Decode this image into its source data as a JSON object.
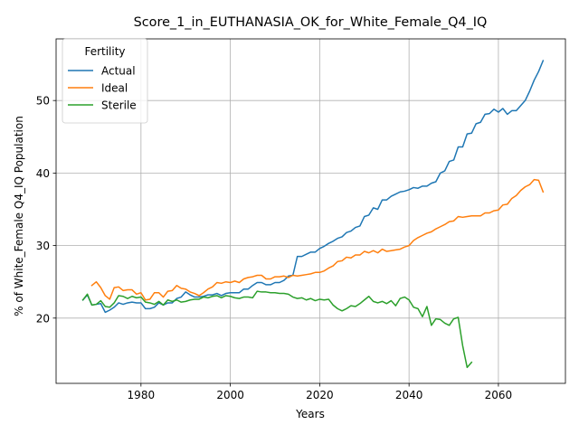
{
  "chart_data": {
    "type": "line",
    "title": "Score_1_in_EUTHANASIA_OK_for_White_Female_Q4_IQ",
    "xlabel": "Years",
    "ylabel": "% of White_Female Q4_IQ Population",
    "xlim": [
      1961,
      2075
    ],
    "ylim": [
      11,
      58.5
    ],
    "xticks": [
      1980,
      2000,
      2020,
      2040,
      2060
    ],
    "yticks": [
      20,
      30,
      40,
      50
    ],
    "grid": true,
    "legend": {
      "title": "Fertility",
      "position": "upper left"
    },
    "series": [
      {
        "name": "Actual",
        "color": "#1f77b4",
        "x": [
          1967,
          1968,
          1969,
          1970,
          1971,
          1972,
          1973,
          1974,
          1975,
          1976,
          1977,
          1978,
          1979,
          1980,
          1981,
          1982,
          1983,
          1984,
          1985,
          1986,
          1987,
          1988,
          1989,
          1990,
          1991,
          1992,
          1993,
          1994,
          1995,
          1996,
          1997,
          1998,
          1999,
          2000,
          2001,
          2002,
          2003,
          2004,
          2005,
          2006,
          2007,
          2008,
          2009,
          2010,
          2011,
          2012,
          2013,
          2014,
          2015,
          2016,
          2017,
          2018,
          2019,
          2020,
          2021,
          2022,
          2023,
          2024,
          2025,
          2026,
          2027,
          2028,
          2029,
          2030,
          2031,
          2032,
          2033,
          2034,
          2035,
          2036,
          2037,
          2038,
          2039,
          2040,
          2041,
          2042,
          2043,
          2044,
          2045,
          2046,
          2047,
          2048,
          2049,
          2050,
          2051,
          2052,
          2053,
          2054,
          2055,
          2056,
          2057,
          2058,
          2059,
          2060,
          2061,
          2062,
          2063,
          2064,
          2065,
          2066,
          2067,
          2068,
          2069,
          2070
        ],
        "values": [
          22.5,
          23.2,
          21.8,
          21.9,
          22.0,
          20.8,
          21.1,
          21.5,
          22.1,
          21.9,
          22.1,
          22.2,
          22.1,
          22.1,
          21.3,
          21.3,
          21.5,
          22.1,
          21.8,
          22.1,
          22.1,
          22.7,
          22.9,
          23.6,
          23.2,
          22.9,
          22.9,
          23.0,
          23.2,
          23.2,
          23.4,
          23.1,
          23.4,
          23.5,
          23.5,
          23.5,
          24.0,
          24.0,
          24.5,
          24.9,
          24.9,
          24.6,
          24.6,
          24.9,
          24.9,
          25.2,
          25.8,
          25.9,
          28.5,
          28.5,
          28.8,
          29.1,
          29.1,
          29.6,
          29.9,
          30.3,
          30.6,
          31.0,
          31.2,
          31.8,
          32.0,
          32.5,
          32.7,
          34.0,
          34.2,
          35.2,
          35.0,
          36.3,
          36.3,
          36.8,
          37.1,
          37.4,
          37.5,
          37.7,
          38.0,
          37.9,
          38.2,
          38.2,
          38.6,
          38.8,
          40.0,
          40.3,
          41.6,
          41.8,
          43.6,
          43.6,
          45.4,
          45.5,
          46.8,
          47.0,
          48.1,
          48.2,
          48.8,
          48.4,
          48.9,
          48.1,
          48.6,
          48.6,
          49.3,
          50.0,
          51.3,
          52.8,
          54.0,
          55.5
        ]
      },
      {
        "name": "Ideal",
        "color": "#ff7f0e",
        "x": [
          1969,
          1970,
          1971,
          1972,
          1973,
          1974,
          1975,
          1976,
          1977,
          1978,
          1979,
          1980,
          1981,
          1982,
          1983,
          1984,
          1985,
          1986,
          1987,
          1988,
          1989,
          1990,
          1991,
          1992,
          1993,
          1994,
          1995,
          1996,
          1997,
          1998,
          1999,
          2000,
          2001,
          2002,
          2003,
          2004,
          2005,
          2006,
          2007,
          2008,
          2009,
          2010,
          2011,
          2012,
          2013,
          2014,
          2015,
          2016,
          2017,
          2018,
          2019,
          2020,
          2021,
          2022,
          2023,
          2024,
          2025,
          2026,
          2027,
          2028,
          2029,
          2030,
          2031,
          2032,
          2033,
          2034,
          2035,
          2036,
          2037,
          2038,
          2039,
          2040,
          2041,
          2042,
          2043,
          2044,
          2045,
          2046,
          2047,
          2048,
          2049,
          2050,
          2051,
          2052,
          2053,
          2054,
          2055,
          2056,
          2057,
          2058,
          2059,
          2060,
          2061,
          2062,
          2063,
          2064,
          2065,
          2066,
          2067,
          2068,
          2069,
          2070
        ],
        "values": [
          24.5,
          25.0,
          24.2,
          23.1,
          22.6,
          24.2,
          24.3,
          23.8,
          23.9,
          23.9,
          23.3,
          23.5,
          22.5,
          22.6,
          23.5,
          23.5,
          22.9,
          23.7,
          23.8,
          24.5,
          24.1,
          24.0,
          23.6,
          23.4,
          23.1,
          23.5,
          24.0,
          24.3,
          24.9,
          24.8,
          25.0,
          24.9,
          25.1,
          24.9,
          25.4,
          25.6,
          25.7,
          25.9,
          25.9,
          25.4,
          25.4,
          25.7,
          25.7,
          25.8,
          25.6,
          25.9,
          25.8,
          25.9,
          26.0,
          26.1,
          26.3,
          26.3,
          26.5,
          26.9,
          27.2,
          27.8,
          27.9,
          28.4,
          28.3,
          28.7,
          28.7,
          29.2,
          29.0,
          29.3,
          29.0,
          29.5,
          29.2,
          29.3,
          29.4,
          29.5,
          29.8,
          30.0,
          30.7,
          31.1,
          31.4,
          31.7,
          31.9,
          32.3,
          32.6,
          32.9,
          33.3,
          33.4,
          34.0,
          33.9,
          34.0,
          34.1,
          34.1,
          34.1,
          34.5,
          34.5,
          34.8,
          34.9,
          35.6,
          35.7,
          36.5,
          36.9,
          37.6,
          38.1,
          38.4,
          39.1,
          39.0,
          37.4
        ]
      },
      {
        "name": "Sterile",
        "color": "#2ca02c",
        "x": [
          1967,
          1968,
          1969,
          1970,
          1971,
          1972,
          1973,
          1974,
          1975,
          1976,
          1977,
          1978,
          1979,
          1980,
          1981,
          1982,
          1983,
          1984,
          1985,
          1986,
          1987,
          1988,
          1989,
          1990,
          1991,
          1992,
          1993,
          1994,
          1995,
          1996,
          1997,
          1998,
          1999,
          2000,
          2001,
          2002,
          2003,
          2004,
          2005,
          2006,
          2007,
          2008,
          2009,
          2010,
          2011,
          2012,
          2013,
          2014,
          2015,
          2016,
          2017,
          2018,
          2019,
          2020,
          2021,
          2022,
          2023,
          2024,
          2025,
          2026,
          2027,
          2028,
          2029,
          2030,
          2031,
          2032,
          2033,
          2034,
          2035,
          2036,
          2037,
          2038,
          2039,
          2040,
          2041,
          2042,
          2043,
          2044,
          2045,
          2046,
          2047,
          2048,
          2049,
          2050,
          2051,
          2052,
          2053,
          2054
        ],
        "values": [
          22.5,
          23.3,
          21.8,
          21.9,
          22.4,
          21.6,
          21.5,
          22.1,
          23.1,
          23.0,
          22.7,
          23.0,
          22.8,
          22.9,
          22.2,
          22.1,
          21.9,
          22.3,
          21.8,
          22.5,
          22.3,
          22.5,
          22.2,
          22.3,
          22.5,
          22.6,
          22.6,
          22.9,
          22.8,
          23.0,
          23.1,
          22.8,
          23.1,
          23.0,
          22.8,
          22.7,
          22.9,
          22.9,
          22.8,
          23.7,
          23.6,
          23.6,
          23.5,
          23.5,
          23.4,
          23.4,
          23.3,
          22.9,
          22.7,
          22.8,
          22.5,
          22.7,
          22.4,
          22.6,
          22.5,
          22.6,
          21.8,
          21.3,
          21.0,
          21.3,
          21.7,
          21.6,
          22.0,
          22.5,
          23.0,
          22.3,
          22.1,
          22.3,
          22.0,
          22.4,
          21.7,
          22.7,
          22.9,
          22.5,
          21.5,
          21.3,
          20.2,
          21.6,
          19.0,
          19.9,
          19.8,
          19.3,
          19.0,
          19.9,
          20.1,
          16.2,
          13.2,
          13.9
        ]
      }
    ]
  }
}
